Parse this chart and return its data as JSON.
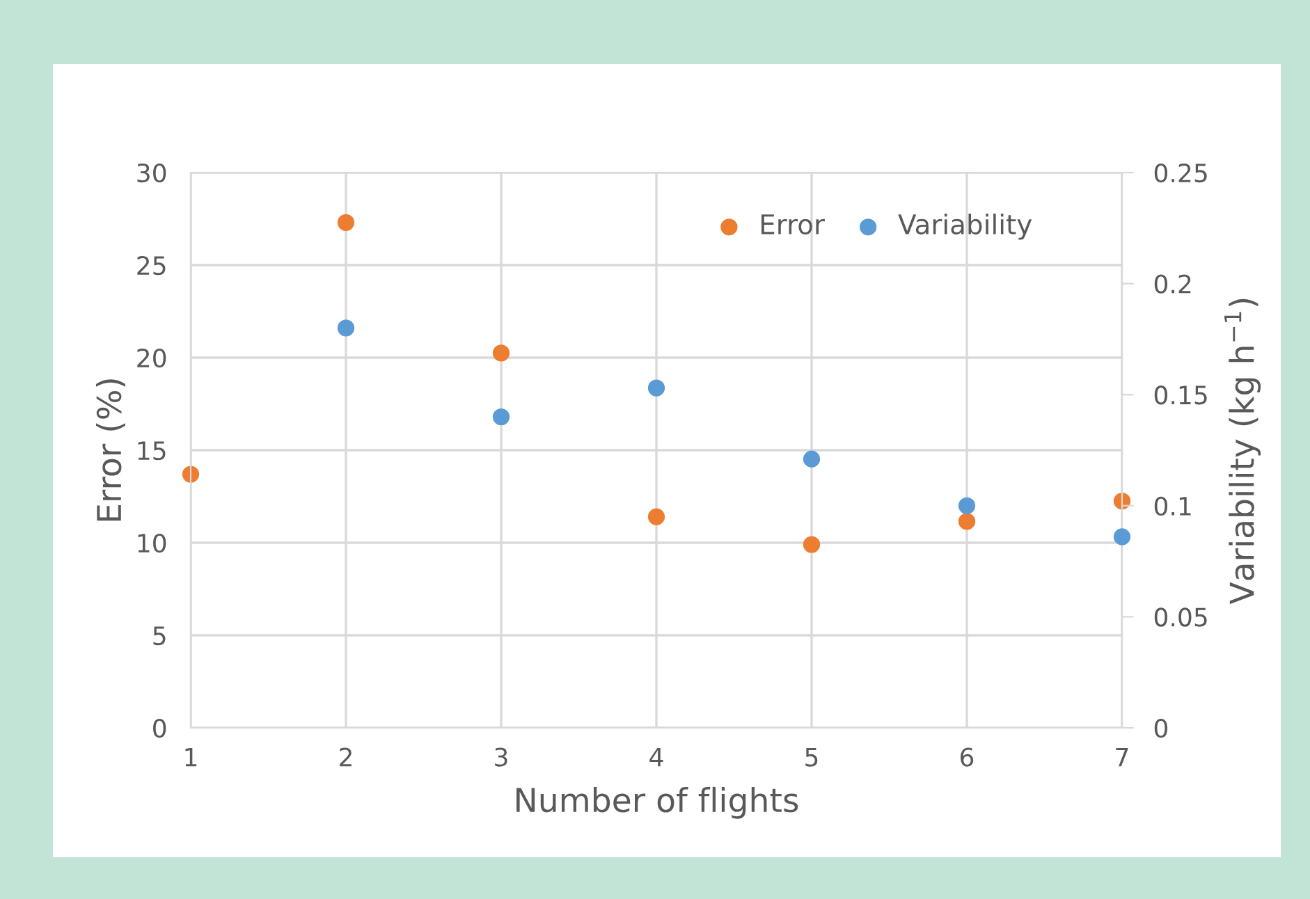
{
  "chart_data": {
    "type": "scatter",
    "xlabel": "Number of flights",
    "ylabel": "Error (%)",
    "y2label": "Variability (kg h$^{−1}$)",
    "x": [
      1,
      2,
      3,
      4,
      5,
      6,
      7
    ],
    "series": [
      {
        "name": "Error",
        "color": "#ed7d31",
        "values": [
          13.7,
          27.3,
          20.25,
          11.4,
          9.9,
          11.15,
          12.25
        ]
      },
      {
        "name": "Variability",
        "color": "#5b9bd5",
        "axis": "y2",
        "values": [
          null,
          0.18,
          0.14,
          0.153,
          0.121,
          0.1,
          0.086
        ]
      }
    ],
    "xlim": [
      1,
      7
    ],
    "xticks": [
      1,
      2,
      3,
      4,
      5,
      6,
      7
    ],
    "ylim": [
      0,
      30
    ],
    "yticks": [
      0,
      5,
      10,
      15,
      20,
      25,
      30
    ],
    "y2lim": [
      0,
      0.25
    ],
    "y2ticks": [
      0,
      0.05,
      0.1,
      0.15,
      0.2,
      0.25
    ],
    "grid": true,
    "legend": "top right",
    "marker": "circle"
  }
}
